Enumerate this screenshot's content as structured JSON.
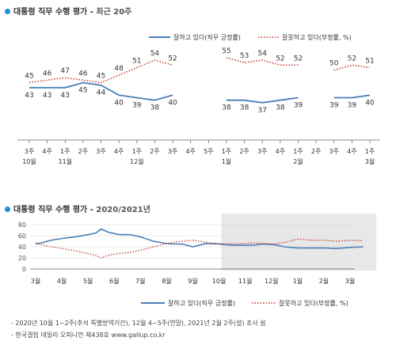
{
  "chart_data": [
    {
      "type": "line",
      "title": "대통령 직무 수행 평가",
      "subtitle": "최근 20주",
      "categories": [
        "3주",
        "4주",
        "1주",
        "2주",
        "3주",
        "4주",
        "1주",
        "2주",
        "3주",
        "4주",
        "5주",
        "1주",
        "2주",
        "3주",
        "4주",
        "1주",
        "2주",
        "3주",
        "4주",
        "1주"
      ],
      "month_labels": [
        {
          "index": 0,
          "label": "10월"
        },
        {
          "index": 2,
          "label": "11월"
        },
        {
          "index": 6,
          "label": "12월"
        },
        {
          "index": 11,
          "label": "1월"
        },
        {
          "index": 15,
          "label": "2월"
        },
        {
          "index": 19,
          "label": "3월"
        }
      ],
      "series": [
        {
          "name": "잘하고 있다(직무 긍정률)",
          "color": "#4a7fb8",
          "style": "solid",
          "values": [
            43,
            43,
            43,
            45,
            44,
            40,
            39,
            38,
            40,
            null,
            null,
            38,
            38,
            37,
            38,
            39,
            null,
            39,
            39,
            40
          ]
        },
        {
          "name": "잘못하고 있다(부정률, %)",
          "color": "#c0392b",
          "style": "dotted",
          "values": [
            45,
            46,
            47,
            46,
            45,
            48,
            51,
            54,
            52,
            null,
            null,
            55,
            53,
            54,
            52,
            52,
            null,
            50,
            52,
            51
          ]
        }
      ],
      "ylim": [
        30,
        60
      ]
    },
    {
      "type": "line",
      "title": "대통령 직무 수행 평가",
      "subtitle": "2020/2021년",
      "x_labels": [
        "3월",
        "4월",
        "5월",
        "6월",
        "7월",
        "8월",
        "9월",
        "10월",
        "11월",
        "12월",
        "1월",
        "2월",
        "3월"
      ],
      "yticks": [
        0,
        20,
        40,
        60,
        80
      ],
      "ylim": [
        0,
        80
      ],
      "shaded_period": [
        7,
        13
      ],
      "series": [
        {
          "name": "잘하고 있다(직무 긍정률)",
          "color": "#4a7fb8",
          "style": "solid",
          "x": [
            0,
            0.3,
            0.6,
            1,
            1.5,
            2,
            2.3,
            2.5,
            2.8,
            3.2,
            3.6,
            4,
            4.5,
            5,
            5.3,
            5.6,
            6,
            6.5,
            7,
            7.5,
            7.9,
            8.3,
            8.7,
            9.1,
            9.5,
            10,
            10.5,
            11,
            11.5,
            12,
            12.5
          ],
          "values": [
            45,
            48,
            52,
            55,
            58,
            62,
            65,
            72,
            66,
            62,
            62,
            58,
            50,
            46,
            45,
            45,
            40,
            46,
            45,
            43,
            43,
            43,
            45,
            44,
            40,
            38,
            38,
            38,
            37,
            39,
            40
          ],
          "gaps_after": [
            6.5,
            9.5,
            11
          ]
        },
        {
          "name": "잘못하고 있다(부정률, %)",
          "color": "#c0392b",
          "style": "dotted",
          "x": [
            0,
            0.3,
            0.6,
            1,
            1.5,
            2,
            2.3,
            2.5,
            2.8,
            3.2,
            3.6,
            4,
            4.5,
            5,
            5.3,
            5.6,
            6,
            6.5,
            7,
            7.5,
            7.9,
            8.3,
            8.7,
            9.1,
            9.5,
            10,
            10.5,
            11,
            11.5,
            12,
            12.5
          ],
          "values": [
            47,
            43,
            40,
            37,
            33,
            28,
            24,
            20,
            25,
            28,
            30,
            34,
            40,
            46,
            48,
            50,
            52,
            48,
            46,
            45,
            46,
            47,
            46,
            45,
            48,
            54,
            52,
            52,
            50,
            52,
            51
          ],
          "gaps_after": [
            6.5,
            9.5,
            11
          ]
        }
      ]
    }
  ],
  "notes": [
    "- 2020년 10월 1~2주(추석 특별방역기간), 12월 4~5주(연말), 2021년 2월 2주(설) 조사 쉼",
    "- 한국갤럽 데일리 오피니언 제438호 www.gallup.co.kr"
  ]
}
